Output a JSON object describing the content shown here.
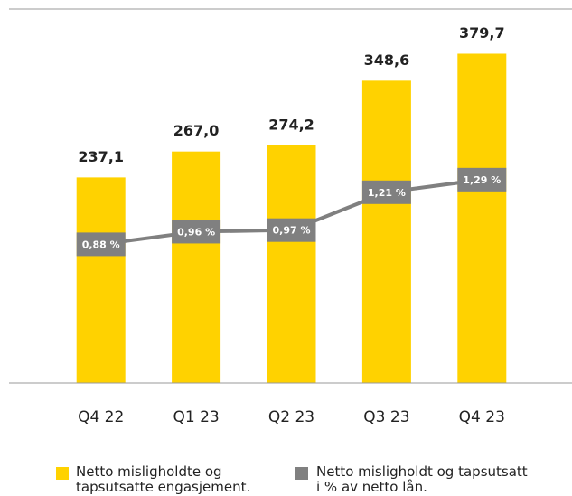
{
  "chart_data": {
    "type": "bar",
    "categories": [
      "Q4 22",
      "Q1 23",
      "Q2 23",
      "Q3 23",
      "Q4 23"
    ],
    "series": [
      {
        "name": "Netto misligholdte og tapsutsatte engasjement.",
        "type": "bar",
        "color": "#ffd200",
        "values": [
          237.1,
          267.0,
          274.2,
          348.6,
          379.7
        ],
        "value_labels": [
          "237,1",
          "267,0",
          "274,2",
          "348,6",
          "379,7"
        ]
      },
      {
        "name": "Netto misligholdt og tapsutsatt i % av netto lån.",
        "type": "line",
        "axis": "y2",
        "color": "#808080",
        "values": [
          0.88,
          0.96,
          0.97,
          1.21,
          1.29
        ],
        "value_labels": [
          "0,88 %",
          "0,96 %",
          "0,97 %",
          "1,21 %",
          "1,29 %"
        ]
      }
    ],
    "ylim": [
      0,
      400
    ],
    "y2lim": [
      0,
      2.2
    ]
  }
}
